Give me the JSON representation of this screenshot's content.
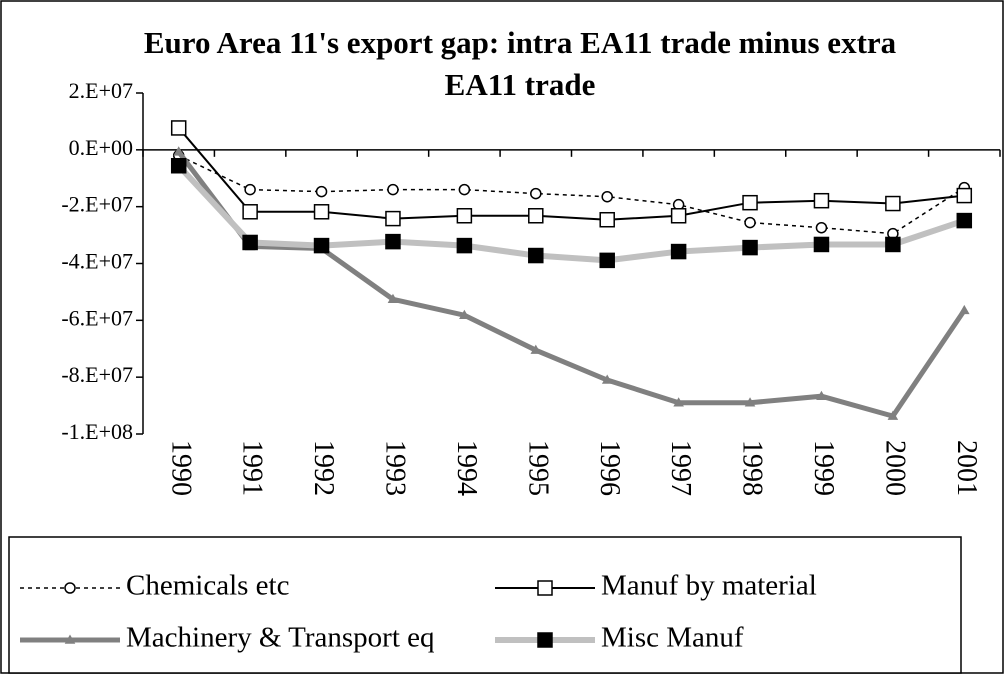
{
  "chart_data": {
    "type": "line",
    "title": "Euro Area 11's export gap: intra EA11 trade minus extra EA11 trade",
    "categories": [
      "1990",
      "1991",
      "1992",
      "1993",
      "1994",
      "1995",
      "1996",
      "1997",
      "1998",
      "1999",
      "2000",
      "2001"
    ],
    "series": [
      {
        "name": "Chemicals etc",
        "color": "#000000",
        "line_width": 1.5,
        "dash": "4 4",
        "marker": "circle",
        "marker_fill": "#ffffff",
        "values": [
          -2000000,
          -14000000,
          -14700000,
          -14000000,
          -14000000,
          -15400000,
          -16500000,
          -19300000,
          -25600000,
          -27400000,
          -29500000,
          -13300000
        ]
      },
      {
        "name": "Manuf by material",
        "color": "#000000",
        "line_width": 2,
        "dash": "none",
        "marker": "square",
        "marker_fill": "#ffffff",
        "values": [
          7700000,
          -21800000,
          -21800000,
          -24200000,
          -23200000,
          -23200000,
          -24600000,
          -23200000,
          -18600000,
          -17900000,
          -18900000,
          -16100000
        ]
      },
      {
        "name": "Machinery & Transport eq",
        "color": "#808080",
        "line_width": 5,
        "dash": "none",
        "marker": "triangle",
        "marker_fill": "#808080",
        "values": [
          -700000,
          -34000000,
          -34700000,
          -52600000,
          -58200000,
          -70500000,
          -81000000,
          -89000000,
          -89000000,
          -86700000,
          -93700000,
          -56500000
        ]
      },
      {
        "name": "Misc Manuf",
        "color": "#c0c0c0",
        "line_width": 6,
        "dash": "none",
        "marker": "square",
        "marker_fill": "#000000",
        "values": [
          -5600000,
          -32600000,
          -33700000,
          -32300000,
          -33700000,
          -37200000,
          -38900000,
          -35800000,
          -34400000,
          -33300000,
          -33300000,
          -24900000
        ]
      }
    ],
    "ylim": [
      -100000000,
      20000000
    ],
    "yticks": [
      {
        "value": 20000000,
        "label": "2.E+07"
      },
      {
        "value": 0,
        "label": "0.E+00"
      },
      {
        "value": -20000000,
        "label": "-2.E+07"
      },
      {
        "value": -40000000,
        "label": "-4.E+07"
      },
      {
        "value": -60000000,
        "label": "-6.E+07"
      },
      {
        "value": -80000000,
        "label": "-8.E+07"
      },
      {
        "value": -100000000,
        "label": "-1.E+08"
      }
    ],
    "grid": false
  }
}
